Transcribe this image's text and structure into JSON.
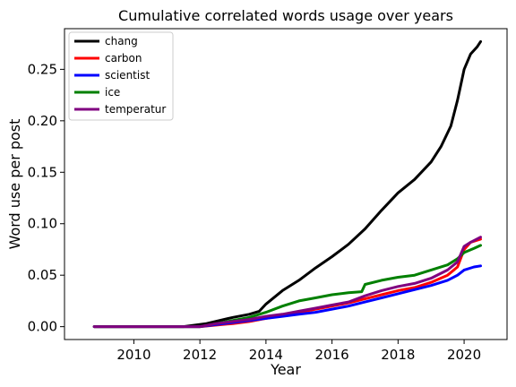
{
  "chart_data": {
    "type": "line",
    "title": "Cumulative correlated words usage over years",
    "xlabel": "Year",
    "ylabel": "Word use per post",
    "xlim": [
      2007.9,
      2021.3
    ],
    "ylim": [
      -0.0125,
      0.2895
    ],
    "xticks": [
      2010,
      2012,
      2014,
      2016,
      2018,
      2020
    ],
    "xtick_labels": [
      "2010",
      "2012",
      "2014",
      "2016",
      "2018",
      "2020"
    ],
    "yticks": [
      0.0,
      0.05,
      0.1,
      0.15,
      0.2,
      0.25
    ],
    "ytick_labels": [
      "0.00",
      "0.05",
      "0.10",
      "0.15",
      "0.20",
      "0.25"
    ],
    "grid": false,
    "legend_position": "top-left",
    "series": [
      {
        "name": "chang",
        "color": "#000000",
        "x": [
          2008.8,
          2011.5,
          2012.2,
          2012.6,
          2013.0,
          2013.5,
          2013.8,
          2014.0,
          2014.5,
          2015.0,
          2015.5,
          2016.0,
          2016.5,
          2017.0,
          2017.5,
          2018.0,
          2018.5,
          2019.0,
          2019.3,
          2019.6,
          2019.8,
          2020.0,
          2020.2,
          2020.4,
          2020.5
        ],
        "y": [
          0.0,
          0.0,
          0.003,
          0.006,
          0.009,
          0.012,
          0.015,
          0.022,
          0.035,
          0.045,
          0.057,
          0.068,
          0.08,
          0.095,
          0.113,
          0.13,
          0.143,
          0.16,
          0.175,
          0.195,
          0.22,
          0.25,
          0.265,
          0.272,
          0.277
        ]
      },
      {
        "name": "carbon",
        "color": "#ff0000",
        "x": [
          2008.8,
          2012.0,
          2012.5,
          2013.0,
          2013.5,
          2014.0,
          2014.5,
          2015.0,
          2015.5,
          2016.0,
          2016.5,
          2017.0,
          2017.5,
          2018.0,
          2018.5,
          2019.0,
          2019.5,
          2019.8,
          2020.0,
          2020.2,
          2020.5
        ],
        "y": [
          0.0,
          0.0,
          0.0015,
          0.003,
          0.005,
          0.008,
          0.011,
          0.014,
          0.017,
          0.02,
          0.023,
          0.027,
          0.031,
          0.035,
          0.038,
          0.043,
          0.05,
          0.058,
          0.075,
          0.082,
          0.085
        ]
      },
      {
        "name": "scientist",
        "color": "#0000ff",
        "x": [
          2008.8,
          2012.0,
          2012.5,
          2013.0,
          2013.5,
          2014.0,
          2014.5,
          2015.0,
          2015.5,
          2016.0,
          2016.5,
          2017.0,
          2017.5,
          2018.0,
          2018.5,
          2019.0,
          2019.5,
          2019.8,
          2020.0,
          2020.3,
          2020.5
        ],
        "y": [
          0.0,
          0.0,
          0.002,
          0.004,
          0.006,
          0.008,
          0.01,
          0.012,
          0.014,
          0.017,
          0.02,
          0.024,
          0.028,
          0.032,
          0.036,
          0.04,
          0.045,
          0.05,
          0.055,
          0.058,
          0.059
        ]
      },
      {
        "name": "ice",
        "color": "#008000",
        "x": [
          2008.8,
          2012.0,
          2012.5,
          2013.0,
          2013.5,
          2014.0,
          2014.5,
          2015.0,
          2015.5,
          2016.0,
          2016.5,
          2016.9,
          2017.0,
          2017.5,
          2018.0,
          2018.5,
          2019.0,
          2019.5,
          2019.8,
          2020.0,
          2020.3,
          2020.5
        ],
        "y": [
          0.0,
          0.0,
          0.003,
          0.006,
          0.009,
          0.014,
          0.02,
          0.025,
          0.028,
          0.031,
          0.033,
          0.034,
          0.041,
          0.045,
          0.048,
          0.05,
          0.055,
          0.06,
          0.066,
          0.072,
          0.076,
          0.079
        ]
      },
      {
        "name": "temperatur",
        "color": "#800080",
        "x": [
          2008.8,
          2012.0,
          2012.5,
          2013.0,
          2013.5,
          2014.0,
          2014.5,
          2015.0,
          2015.5,
          2016.0,
          2016.5,
          2017.0,
          2017.5,
          2018.0,
          2018.5,
          2019.0,
          2019.5,
          2019.8,
          2020.0,
          2020.2,
          2020.5
        ],
        "y": [
          0.0,
          0.0,
          0.003,
          0.005,
          0.007,
          0.01,
          0.012,
          0.015,
          0.018,
          0.021,
          0.024,
          0.03,
          0.035,
          0.039,
          0.042,
          0.047,
          0.055,
          0.063,
          0.078,
          0.082,
          0.087
        ]
      }
    ]
  }
}
